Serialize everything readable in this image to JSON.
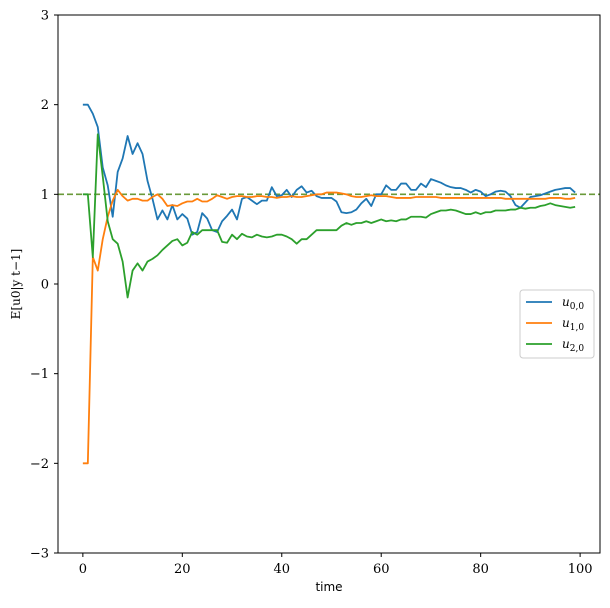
{
  "chart_data": {
    "type": "line",
    "xlabel": "time",
    "ylabel": "E[u0|y t−1]",
    "xlim": [
      -5,
      104
    ],
    "ylim": [
      -3,
      3
    ],
    "xticks": [
      0,
      20,
      40,
      60,
      80,
      100
    ],
    "yticks": [
      -3,
      -2,
      -1,
      0,
      1,
      2,
      3
    ],
    "xtick_labels": [
      "0",
      "20",
      "40",
      "60",
      "80",
      "100"
    ],
    "ytick_labels": [
      "−3",
      "−2",
      "−1",
      "0",
      "1",
      "2",
      "3"
    ],
    "grid": false,
    "legend_position": "center-right",
    "reference_line": {
      "y": 1.0,
      "style": "dashed",
      "color": "#6a9a3a"
    },
    "series": [
      {
        "name": "u0,0",
        "legend_main": "u",
        "legend_sub": "0,0",
        "color": "#1f77b4",
        "x": [
          0,
          1,
          2,
          3,
          4,
          5,
          6,
          7,
          8,
          9,
          10,
          11,
          12,
          13,
          14,
          15,
          16,
          17,
          18,
          19,
          20,
          21,
          22,
          23,
          24,
          25,
          26,
          27,
          28,
          29,
          30,
          31,
          32,
          33,
          34,
          35,
          36,
          37,
          38,
          39,
          40,
          41,
          42,
          43,
          44,
          45,
          46,
          47,
          48,
          49,
          50,
          51,
          52,
          53,
          54,
          55,
          56,
          57,
          58,
          59,
          60,
          61,
          62,
          63,
          64,
          65,
          66,
          67,
          68,
          69,
          70,
          71,
          72,
          73,
          74,
          75,
          76,
          77,
          78,
          79,
          80,
          81,
          82,
          83,
          84,
          85,
          86,
          87,
          88,
          89,
          90,
          91,
          92,
          93,
          94,
          95,
          96,
          97,
          98,
          99
        ],
        "values": [
          2.0,
          2.0,
          1.9,
          1.75,
          1.3,
          1.1,
          0.75,
          1.25,
          1.4,
          1.65,
          1.45,
          1.57,
          1.45,
          1.15,
          0.95,
          0.72,
          0.82,
          0.72,
          0.88,
          0.72,
          0.78,
          0.73,
          0.55,
          0.58,
          0.79,
          0.73,
          0.6,
          0.58,
          0.7,
          0.76,
          0.83,
          0.72,
          0.95,
          0.97,
          0.93,
          0.89,
          0.93,
          0.93,
          1.08,
          0.98,
          0.99,
          1.05,
          0.97,
          1.05,
          1.09,
          1.02,
          1.04,
          0.98,
          0.96,
          0.96,
          0.96,
          0.92,
          0.8,
          0.79,
          0.8,
          0.83,
          0.9,
          0.95,
          0.87,
          1.0,
          1.0,
          1.1,
          1.05,
          1.05,
          1.12,
          1.12,
          1.05,
          1.05,
          1.12,
          1.08,
          1.17,
          1.15,
          1.13,
          1.1,
          1.08,
          1.07,
          1.07,
          1.05,
          1.02,
          1.05,
          1.03,
          0.98,
          1.0,
          1.03,
          1.04,
          1.03,
          0.98,
          0.88,
          0.85,
          0.91,
          0.97,
          0.98,
          0.99,
          1.01,
          1.03,
          1.05,
          1.06,
          1.07,
          1.07,
          1.02
        ]
      },
      {
        "name": "u1,0",
        "legend_main": "u",
        "legend_sub": "1,0",
        "color": "#ff7f0e",
        "x": [
          0,
          1,
          2,
          3,
          4,
          5,
          6,
          7,
          8,
          9,
          10,
          11,
          12,
          13,
          14,
          15,
          16,
          17,
          18,
          19,
          20,
          21,
          22,
          23,
          24,
          25,
          26,
          27,
          28,
          29,
          30,
          31,
          32,
          33,
          34,
          35,
          36,
          37,
          38,
          39,
          40,
          41,
          42,
          43,
          44,
          45,
          46,
          47,
          48,
          49,
          50,
          51,
          52,
          53,
          54,
          55,
          56,
          57,
          58,
          59,
          60,
          61,
          62,
          63,
          64,
          65,
          66,
          67,
          68,
          69,
          70,
          71,
          72,
          73,
          74,
          75,
          76,
          77,
          78,
          79,
          80,
          81,
          82,
          83,
          84,
          85,
          86,
          87,
          88,
          89,
          90,
          91,
          92,
          93,
          94,
          95,
          96,
          97,
          98,
          99
        ],
        "values": [
          -2.0,
          -2.0,
          0.3,
          0.15,
          0.5,
          0.75,
          0.93,
          1.05,
          0.98,
          0.93,
          0.95,
          0.95,
          0.93,
          0.93,
          0.97,
          1.0,
          0.95,
          0.87,
          0.88,
          0.87,
          0.9,
          0.92,
          0.92,
          0.95,
          0.92,
          0.92,
          0.95,
          0.99,
          0.97,
          0.95,
          0.97,
          0.98,
          0.98,
          0.97,
          0.97,
          0.98,
          0.98,
          0.97,
          0.97,
          0.96,
          0.97,
          0.97,
          0.98,
          0.97,
          0.97,
          0.98,
          0.99,
          1.0,
          1.0,
          1.02,
          1.02,
          1.02,
          1.01,
          1.0,
          0.98,
          0.97,
          0.97,
          0.98,
          0.99,
          0.98,
          0.98,
          0.98,
          0.97,
          0.96,
          0.96,
          0.96,
          0.96,
          0.97,
          0.97,
          0.97,
          0.97,
          0.97,
          0.96,
          0.96,
          0.96,
          0.96,
          0.96,
          0.96,
          0.96,
          0.96,
          0.96,
          0.96,
          0.96,
          0.96,
          0.96,
          0.95,
          0.95,
          0.95,
          0.95,
          0.95,
          0.95,
          0.95,
          0.95,
          0.95,
          0.96,
          0.96,
          0.96,
          0.95,
          0.95,
          0.96
        ]
      },
      {
        "name": "u2,0",
        "legend_main": "u",
        "legend_sub": "2,0",
        "color": "#2ca02c",
        "x": [
          0,
          1,
          2,
          3,
          4,
          5,
          6,
          7,
          8,
          9,
          10,
          11,
          12,
          13,
          14,
          15,
          16,
          17,
          18,
          19,
          20,
          21,
          22,
          23,
          24,
          25,
          26,
          27,
          28,
          29,
          30,
          31,
          32,
          33,
          34,
          35,
          36,
          37,
          38,
          39,
          40,
          41,
          42,
          43,
          44,
          45,
          46,
          47,
          48,
          49,
          50,
          51,
          52,
          53,
          54,
          55,
          56,
          57,
          58,
          59,
          60,
          61,
          62,
          63,
          64,
          65,
          66,
          67,
          68,
          69,
          70,
          71,
          72,
          73,
          74,
          75,
          76,
          77,
          78,
          79,
          80,
          81,
          82,
          83,
          84,
          85,
          86,
          87,
          88,
          89,
          90,
          91,
          92,
          93,
          94,
          95,
          96,
          97,
          98,
          99
        ],
        "values": [
          1.0,
          1.0,
          0.3,
          1.67,
          1.2,
          0.7,
          0.5,
          0.45,
          0.25,
          -0.15,
          0.15,
          0.23,
          0.15,
          0.25,
          0.28,
          0.32,
          0.38,
          0.43,
          0.48,
          0.5,
          0.43,
          0.46,
          0.58,
          0.55,
          0.6,
          0.6,
          0.6,
          0.6,
          0.47,
          0.46,
          0.55,
          0.5,
          0.56,
          0.53,
          0.52,
          0.55,
          0.53,
          0.52,
          0.53,
          0.55,
          0.55,
          0.53,
          0.5,
          0.45,
          0.5,
          0.5,
          0.55,
          0.6,
          0.6,
          0.6,
          0.6,
          0.6,
          0.65,
          0.68,
          0.66,
          0.68,
          0.68,
          0.7,
          0.68,
          0.7,
          0.72,
          0.7,
          0.71,
          0.7,
          0.72,
          0.72,
          0.75,
          0.75,
          0.75,
          0.74,
          0.78,
          0.8,
          0.82,
          0.82,
          0.83,
          0.82,
          0.8,
          0.78,
          0.78,
          0.8,
          0.78,
          0.8,
          0.8,
          0.82,
          0.82,
          0.82,
          0.83,
          0.83,
          0.85,
          0.84,
          0.85,
          0.85,
          0.87,
          0.88,
          0.9,
          0.88,
          0.87,
          0.86,
          0.85,
          0.86
        ]
      }
    ]
  }
}
